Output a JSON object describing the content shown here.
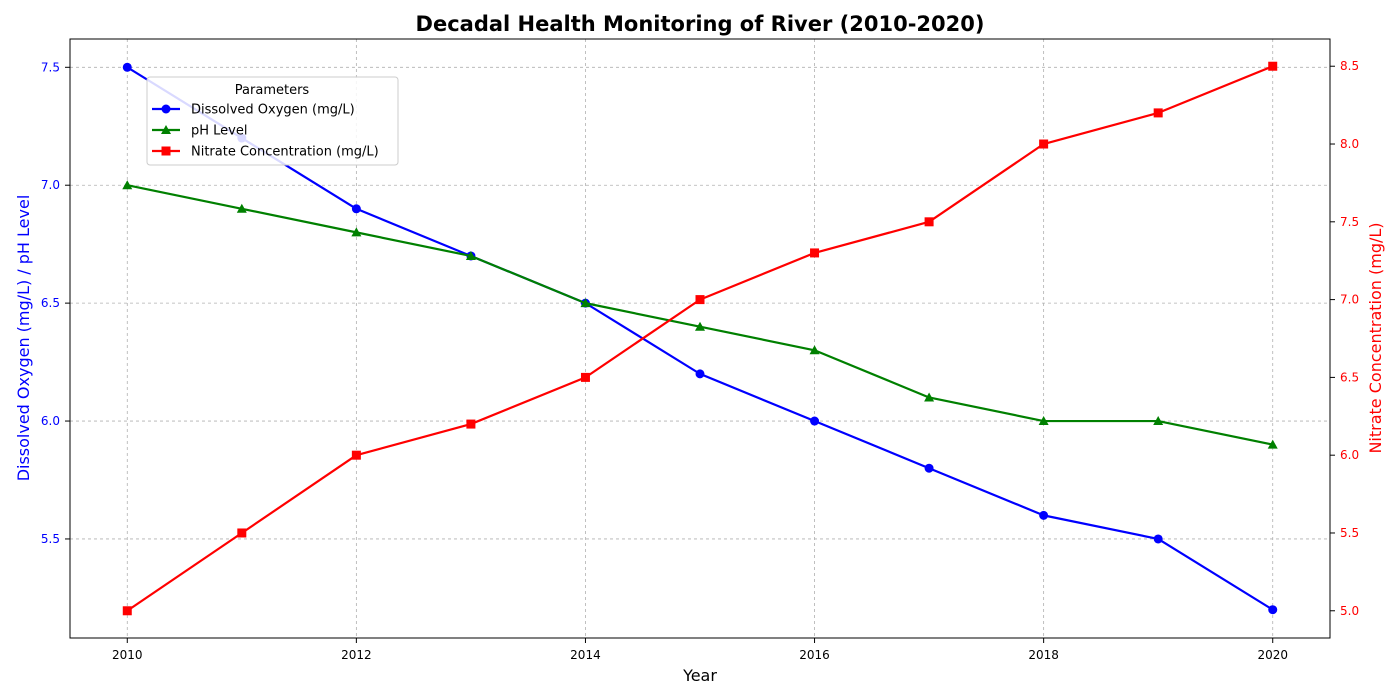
{
  "chart_data": {
    "type": "line",
    "title": "Decadal Health Monitoring of River (2010-2020)",
    "xlabel": "Year",
    "ylabel_left": "Dissolved Oxygen (mg/L) / pH Level",
    "ylabel_right": "Nitrate Concentration (mg/L)",
    "x": [
      2010,
      2011,
      2012,
      2013,
      2014,
      2015,
      2016,
      2017,
      2018,
      2019,
      2020
    ],
    "xlim": [
      2009.5,
      2020.5
    ],
    "xticks": [
      2010,
      2012,
      2014,
      2016,
      2018,
      2020
    ],
    "ylim_left": [
      5.08,
      7.62
    ],
    "yticks_left": [
      "5.5",
      "6.0",
      "6.5",
      "7.0",
      "7.5"
    ],
    "ylim_right": [
      4.825,
      8.675
    ],
    "yticks_right": [
      "5.0",
      "5.5",
      "6.0",
      "6.5",
      "7.0",
      "7.5",
      "8.0",
      "8.5"
    ],
    "grid": true,
    "legend": {
      "title": "Parameters",
      "placement": "upper-left"
    },
    "series": [
      {
        "name": "Dissolved Oxygen (mg/L)",
        "axis": "left",
        "color": "#0000ff",
        "marker": "circle",
        "values": [
          7.5,
          7.2,
          6.9,
          6.7,
          6.5,
          6.2,
          6.0,
          5.8,
          5.6,
          5.5,
          5.2
        ]
      },
      {
        "name": "pH Level",
        "axis": "left",
        "color": "#008000",
        "marker": "triangle",
        "values": [
          7.0,
          6.9,
          6.8,
          6.7,
          6.5,
          6.4,
          6.3,
          6.1,
          6.0,
          6.0,
          5.9
        ]
      },
      {
        "name": "Nitrate Concentration (mg/L)",
        "axis": "right",
        "color": "#ff0000",
        "marker": "square",
        "values": [
          5.0,
          5.5,
          6.0,
          6.2,
          6.5,
          7.0,
          7.3,
          7.5,
          8.0,
          8.2,
          8.5
        ]
      }
    ]
  }
}
